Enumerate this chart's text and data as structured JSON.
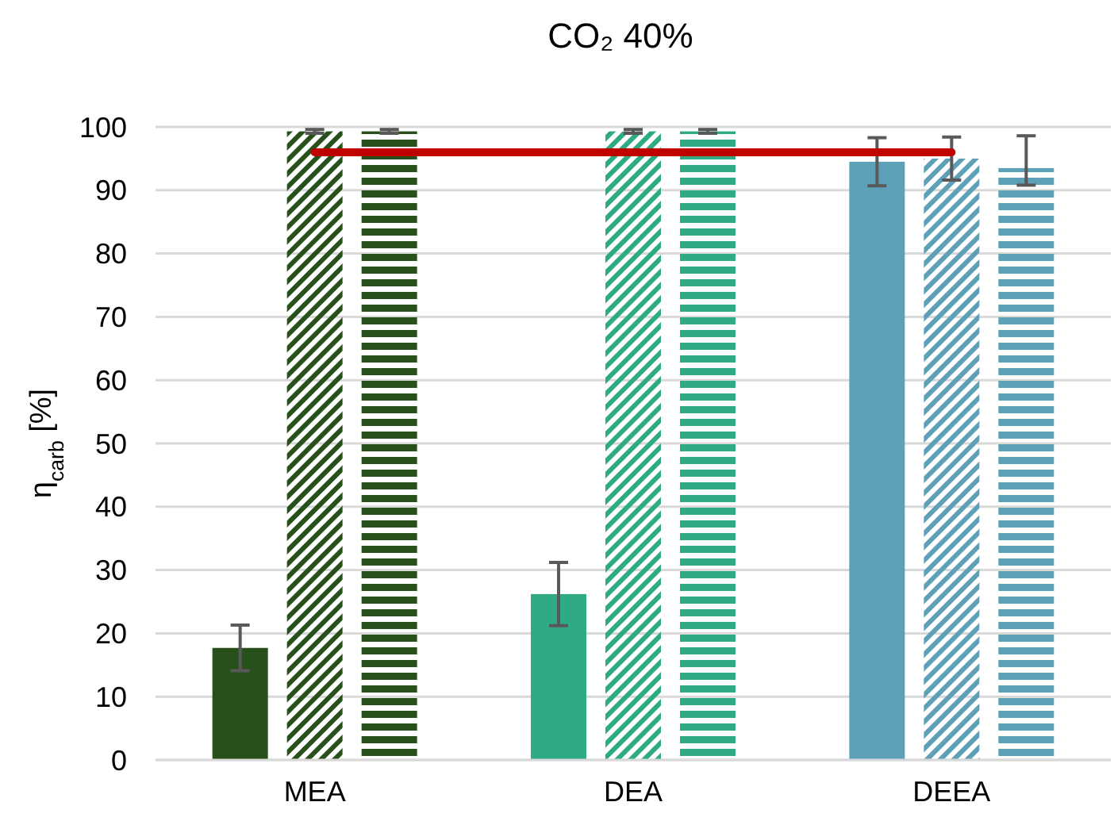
{
  "chart_data": {
    "type": "bar",
    "title": "CO₂ 40%",
    "ylabel": "η$_{carb}$ [%]",
    "categories": [
      "MEA",
      "DEA",
      "DEEA"
    ],
    "series": [
      {
        "colors": [
          "#27501a",
          "#2eaa85",
          "#5fa0b9"
        ],
        "values": [
          17.7,
          26.2,
          94.5
        ],
        "errors": [
          3.6,
          5,
          3.8
        ]
      },
      {
        "colors": [
          "#27501a",
          "#2eaa85",
          "#5fa0b9"
        ],
        "values": [
          99.3,
          99.3,
          95
        ],
        "errors": [
          0.3,
          0.3,
          3.4
        ]
      },
      {
        "colors": [
          "#27501a",
          "#2eaa85",
          "#5fa0b9"
        ],
        "values": [
          99.3,
          99.3,
          93.5
        ],
        "errors": [
          0.3,
          0.3,
          [
            90.8,
            98.6
          ]
        ]
      }
    ],
    "ylim": [
      0,
      100
    ],
    "yticks": [
      0,
      10,
      20,
      30,
      40,
      50,
      60,
      70,
      80,
      90,
      100
    ],
    "grid": "y",
    "ref_lines": [
      {
        "axis": "y",
        "value": 96,
        "color": "#c00000"
      }
    ]
  }
}
